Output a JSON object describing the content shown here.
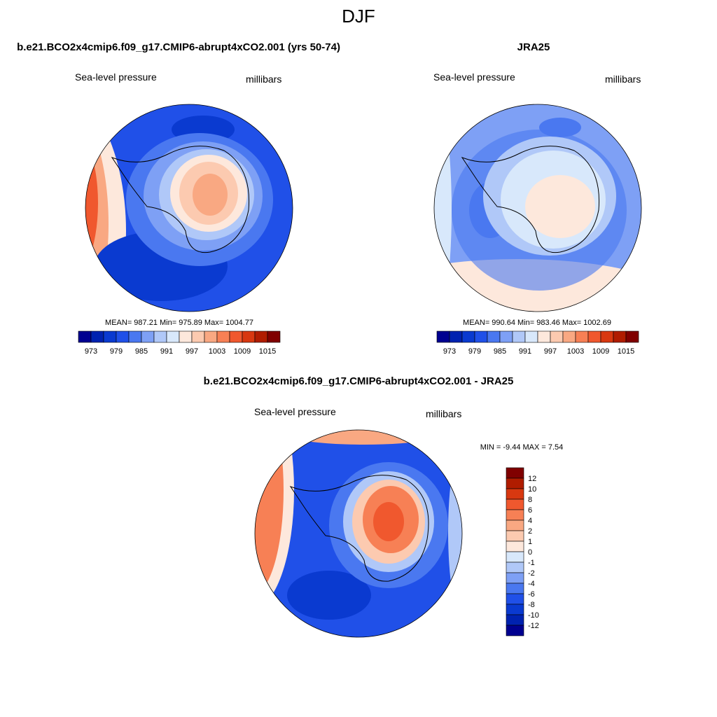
{
  "title": "DJF",
  "panels": [
    {
      "title": "b.e21.BCO2x4cmip6.f09_g17.CMIP6-abrupt4xCO2.001 (yrs 50-74)",
      "left_label": "Sea-level pressure",
      "right_label": "millibars",
      "stats": "MEAN= 987.21  Min= 975.89  Max= 1004.77",
      "colorbar_labels": [
        "973",
        "979",
        "985",
        "991",
        "997",
        "1003",
        "1009",
        "1015"
      ]
    },
    {
      "title": "JRA25",
      "left_label": "Sea-level pressure",
      "right_label": "millibars",
      "stats": "MEAN= 990.64  Min= 983.46  Max= 1002.69",
      "colorbar_labels": [
        "973",
        "979",
        "985",
        "991",
        "997",
        "1003",
        "1009",
        "1015"
      ]
    },
    {
      "title": "b.e21.BCO2x4cmip6.f09_g17.CMIP6-abrupt4xCO2.001 - JRA25",
      "left_label": "Sea-level pressure",
      "right_label": "millibars",
      "stats": "MIN =  -9.44 MAX =   7.54",
      "colorbar_labels": [
        "12",
        "10",
        "8",
        "6",
        "4",
        "2",
        "1",
        "0",
        "-1",
        "-2",
        "-4",
        "-6",
        "-8",
        "-10",
        "-12"
      ]
    }
  ],
  "colors": [
    "#000090",
    "#0022b0",
    "#0a3ad0",
    "#2050e8",
    "#4a78f0",
    "#7ea0f5",
    "#b0c8f8",
    "#d8e8fb",
    "#fde8dc",
    "#fccab0",
    "#f9a882",
    "#f78055",
    "#f0582e",
    "#d83810",
    "#b01c00",
    "#800000"
  ]
}
